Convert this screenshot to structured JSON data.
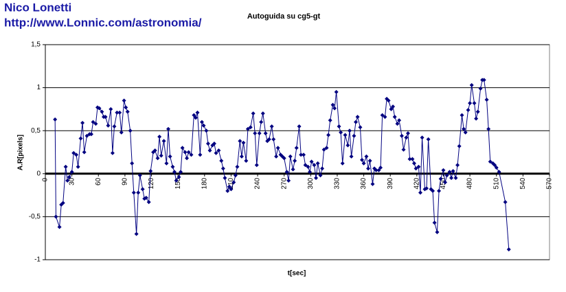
{
  "chart_data": {
    "type": "line",
    "title": "Autoguida su cg5-gt",
    "annotations": [
      "Nico Lonetti",
      "http://www.Lonnic.com/astronomia/"
    ],
    "xlabel": "t[sec]",
    "ylabel": "A.R[pixels]",
    "color": "#000080",
    "x": [
      11,
      12,
      16,
      18,
      20,
      23,
      25,
      27,
      30,
      32,
      35,
      37,
      40,
      42,
      44,
      47,
      50,
      52,
      54,
      57,
      59,
      61,
      64,
      66,
      68,
      71,
      74,
      76,
      78,
      81,
      84,
      86,
      89,
      91,
      93,
      96,
      98,
      100,
      103,
      105,
      107,
      110,
      112,
      114,
      117,
      119,
      122,
      124,
      127,
      129,
      131,
      134,
      137,
      139,
      141,
      144,
      146,
      148,
      151,
      153,
      155,
      158,
      160,
      162,
      165,
      168,
      170,
      172,
      175,
      177,
      179,
      182,
      184,
      186,
      189,
      191,
      193,
      196,
      199,
      201,
      203,
      206,
      208,
      210,
      213,
      215,
      217,
      220,
      222,
      224,
      227,
      229,
      232,
      235,
      237,
      239,
      242,
      244,
      246,
      249,
      251,
      253,
      256,
      258,
      261,
      263,
      266,
      268,
      270,
      273,
      275,
      277,
      280,
      282,
      284,
      287,
      289,
      292,
      294,
      297,
      299,
      301,
      304,
      306,
      308,
      311,
      313,
      315,
      318,
      320,
      322,
      325,
      327,
      329,
      332,
      334,
      336,
      339,
      342,
      344,
      346,
      349,
      351,
      353,
      356,
      358,
      360,
      363,
      365,
      367,
      370,
      372,
      374,
      377,
      379,
      381,
      384,
      386,
      388,
      391,
      393,
      395,
      398,
      400,
      403,
      405,
      408,
      410,
      412,
      415,
      417,
      419,
      422,
      424,
      426,
      429,
      431,
      433,
      436,
      438,
      440,
      443,
      445,
      447,
      450,
      452,
      454,
      457,
      459,
      461,
      464,
      466,
      468,
      471,
      473,
      475,
      478,
      480,
      482,
      485,
      487,
      489,
      492,
      494,
      496,
      499,
      501,
      503,
      506,
      508,
      510,
      513,
      520,
      524
    ],
    "values": [
      0.63,
      -0.5,
      -0.62,
      -0.36,
      -0.34,
      0.08,
      -0.08,
      -0.04,
      0.02,
      0.24,
      0.22,
      0.08,
      0.41,
      0.59,
      0.25,
      0.44,
      0.46,
      0.46,
      0.6,
      0.58,
      0.77,
      0.76,
      0.72,
      0.66,
      0.66,
      0.56,
      0.75,
      0.24,
      0.55,
      0.71,
      0.71,
      0.48,
      0.85,
      0.77,
      0.72,
      0.5,
      0.12,
      -0.22,
      -0.7,
      -0.22,
      -0.02,
      -0.18,
      -0.29,
      -0.28,
      -0.33,
      0.03,
      0.25,
      0.27,
      0.18,
      0.43,
      0.21,
      0.38,
      0.12,
      0.52,
      0.2,
      0.08,
      0.02,
      -0.08,
      -0.04,
      0.02,
      0.3,
      0.25,
      0.18,
      0.25,
      0.22,
      0.68,
      0.65,
      0.71,
      0.22,
      0.6,
      0.56,
      0.5,
      0.35,
      0.27,
      0.33,
      0.35,
      0.24,
      0.27,
      0.15,
      0.06,
      -0.05,
      -0.2,
      -0.15,
      -0.18,
      -0.1,
      -0.02,
      0.08,
      0.38,
      0.2,
      0.36,
      0.15,
      0.52,
      0.54,
      0.7,
      0.47,
      0.1,
      0.47,
      0.6,
      0.7,
      0.47,
      0.38,
      0.4,
      0.55,
      0.4,
      0.2,
      0.3,
      0.22,
      0.2,
      0.18,
      0.02,
      -0.08,
      0.2,
      0.05,
      0.15,
      0.3,
      0.55,
      0.22,
      0.22,
      0.1,
      0.08,
      0.02,
      0.14,
      0.1,
      -0.05,
      0.12,
      -0.02,
      0.06,
      0.28,
      0.3,
      0.45,
      0.62,
      0.8,
      0.76,
      0.95,
      0.55,
      0.48,
      0.12,
      0.45,
      0.33,
      0.5,
      0.2,
      0.44,
      0.6,
      0.66,
      0.54,
      0.16,
      0.12,
      0.2,
      0.06,
      0.15,
      -0.12,
      0.06,
      0.04,
      0.04,
      0.07,
      0.68,
      0.66,
      0.87,
      0.85,
      0.75,
      0.78,
      0.66,
      0.58,
      0.62,
      0.44,
      0.28,
      0.42,
      0.47,
      0.17,
      0.17,
      0.12,
      0.06,
      0.08,
      -0.22,
      0.42,
      -0.18,
      -0.17,
      0.4,
      -0.18,
      -0.2,
      -0.57,
      -0.68,
      -0.2,
      -0.06,
      0.04,
      -0.1,
      -0.02,
      0.02,
      -0.05,
      0.03,
      -0.05,
      0.1,
      0.32,
      0.68,
      0.52,
      0.48,
      0.74,
      0.82,
      1.03,
      0.82,
      0.64,
      0.72,
      0.99,
      1.09,
      1.09,
      0.86,
      0.52,
      0.14,
      0.12,
      0.1,
      0.07,
      0.02,
      -0.33,
      -0.88
    ],
    "xlim": [
      0,
      570
    ],
    "xticks": [
      0,
      30,
      60,
      90,
      120,
      150,
      180,
      210,
      240,
      270,
      300,
      330,
      360,
      390,
      420,
      450,
      480,
      510,
      540,
      570
    ],
    "ylim": [
      -1,
      1.5
    ],
    "yticks": [
      -1,
      {
        "value": -0.5,
        "label": "-0,5"
      },
      0,
      {
        "value": 0.5,
        "label": "0,5"
      },
      1,
      {
        "value": 1.5,
        "label": "1,5"
      }
    ],
    "grid": true
  }
}
